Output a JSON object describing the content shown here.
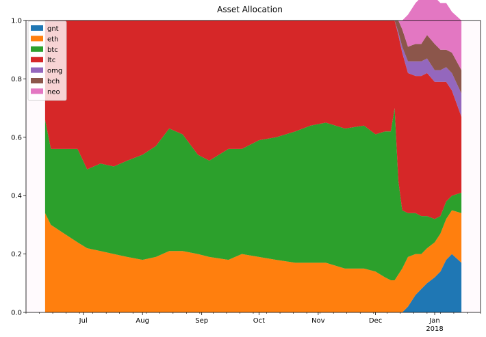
{
  "chart_data": {
    "type": "area",
    "stacked": true,
    "title": "Asset Allocation",
    "xlabel": "",
    "ylabel": "",
    "ylim": [
      0,
      1.0
    ],
    "xlim": [
      "2017-06-01",
      "2018-01-25"
    ],
    "x_ticks": [
      {
        "date": "2017-07-01",
        "label": "Jul",
        "sub": ""
      },
      {
        "date": "2017-08-01",
        "label": "Aug",
        "sub": ""
      },
      {
        "date": "2017-09-01",
        "label": "Sep",
        "sub": ""
      },
      {
        "date": "2017-10-01",
        "label": "Oct",
        "sub": ""
      },
      {
        "date": "2017-11-01",
        "label": "Nov",
        "sub": ""
      },
      {
        "date": "2017-12-01",
        "label": "Dec",
        "sub": ""
      },
      {
        "date": "2018-01-01",
        "label": "Jan",
        "sub": "2018"
      }
    ],
    "y_ticks": [
      "0.0",
      "0.2",
      "0.4",
      "0.6",
      "0.8",
      "1.0"
    ],
    "legend_position": "top-left",
    "grid": false,
    "x": [
      "2017-06-11",
      "2017-06-14",
      "2017-06-21",
      "2017-06-28",
      "2017-07-03",
      "2017-07-10",
      "2017-07-17",
      "2017-07-24",
      "2017-08-01",
      "2017-08-08",
      "2017-08-15",
      "2017-08-22",
      "2017-08-30",
      "2017-09-05",
      "2017-09-15",
      "2017-09-22",
      "2017-10-01",
      "2017-10-10",
      "2017-10-20",
      "2017-10-28",
      "2017-11-05",
      "2017-11-15",
      "2017-11-25",
      "2017-12-01",
      "2017-12-06",
      "2017-12-09",
      "2017-12-11",
      "2017-12-13",
      "2017-12-15",
      "2017-12-18",
      "2017-12-22",
      "2017-12-25",
      "2017-12-28",
      "2018-01-01",
      "2018-01-04",
      "2018-01-07",
      "2018-01-10",
      "2018-01-15"
    ],
    "series": [
      {
        "name": "gnt",
        "color": "#1f77b4",
        "values": [
          0,
          0,
          0,
          0,
          0,
          0,
          0,
          0,
          0,
          0,
          0,
          0,
          0,
          0,
          0,
          0,
          0,
          0,
          0,
          0,
          0,
          0,
          0,
          0,
          0,
          0,
          0,
          0,
          0,
          0.02,
          0.06,
          0.08,
          0.1,
          0.12,
          0.14,
          0.18,
          0.2,
          0.17
        ]
      },
      {
        "name": "eth",
        "color": "#ff7f0e",
        "values": [
          0.34,
          0.3,
          0.27,
          0.24,
          0.22,
          0.21,
          0.2,
          0.19,
          0.18,
          0.19,
          0.21,
          0.21,
          0.2,
          0.19,
          0.18,
          0.2,
          0.19,
          0.18,
          0.17,
          0.17,
          0.17,
          0.15,
          0.15,
          0.14,
          0.12,
          0.11,
          0.11,
          0.13,
          0.15,
          0.17,
          0.14,
          0.12,
          0.12,
          0.12,
          0.13,
          0.14,
          0.15,
          0.17
        ]
      },
      {
        "name": "btc",
        "color": "#2ca02c",
        "values": [
          0.32,
          0.26,
          0.29,
          0.32,
          0.27,
          0.3,
          0.3,
          0.33,
          0.36,
          0.38,
          0.42,
          0.4,
          0.34,
          0.33,
          0.38,
          0.36,
          0.4,
          0.42,
          0.45,
          0.47,
          0.48,
          0.48,
          0.49,
          0.47,
          0.5,
          0.51,
          0.59,
          0.32,
          0.2,
          0.15,
          0.14,
          0.13,
          0.11,
          0.08,
          0.06,
          0.06,
          0.05,
          0.07
        ]
      },
      {
        "name": "ltc",
        "color": "#d62728",
        "values": [
          0.34,
          0.44,
          0.44,
          0.44,
          0.51,
          0.49,
          0.5,
          0.48,
          0.46,
          0.43,
          0.37,
          0.39,
          0.46,
          0.48,
          0.44,
          0.44,
          0.41,
          0.4,
          0.38,
          0.36,
          0.35,
          0.37,
          0.36,
          0.39,
          0.38,
          0.38,
          0.3,
          0.5,
          0.54,
          0.48,
          0.47,
          0.48,
          0.49,
          0.47,
          0.46,
          0.41,
          0.36,
          0.26
        ]
      },
      {
        "name": "omg",
        "color": "#9467bd",
        "values": [
          0,
          0,
          0,
          0,
          0,
          0,
          0,
          0,
          0,
          0,
          0,
          0,
          0,
          0,
          0,
          0,
          0,
          0,
          0,
          0,
          0,
          0,
          0,
          0,
          0,
          0,
          0,
          0.01,
          0.02,
          0.04,
          0.05,
          0.05,
          0.05,
          0.04,
          0.04,
          0.05,
          0.06,
          0.08
        ]
      },
      {
        "name": "bch",
        "color": "#8c564b",
        "values": [
          0,
          0,
          0,
          0,
          0,
          0,
          0,
          0,
          0,
          0,
          0,
          0,
          0,
          0,
          0,
          0,
          0,
          0,
          0,
          0,
          0,
          0,
          0,
          0,
          0,
          0,
          0,
          0.04,
          0.06,
          0.05,
          0.06,
          0.06,
          0.08,
          0.09,
          0.07,
          0.06,
          0.07,
          0.08
        ]
      },
      {
        "name": "neo",
        "color": "#e377c2",
        "values": [
          0,
          0,
          0,
          0,
          0,
          0,
          0,
          0,
          0,
          0,
          0,
          0,
          0,
          0,
          0,
          0,
          0,
          0,
          0,
          0,
          0,
          0,
          0,
          0,
          0,
          0,
          0,
          0,
          0.03,
          0.11,
          0.14,
          0.16,
          0.15,
          0.16,
          0.16,
          0.16,
          0.14,
          0.17
        ]
      }
    ]
  }
}
